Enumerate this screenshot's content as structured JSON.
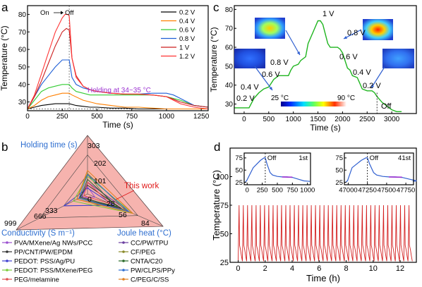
{
  "panels": {
    "a": {
      "label": "a",
      "on": "On",
      "off": "Off",
      "holding": "Holding at 34~35 °C",
      "xlabel": "Time (s)",
      "ylabel": "Temperature (°C)"
    },
    "b": {
      "label": "b",
      "this_work": "This work",
      "ax_hold": "Holding time (s)",
      "ax_cond": "Conductivity (S m⁻¹)",
      "ax_joule": "Joule heat (°C)"
    },
    "c": {
      "label": "c",
      "xlabel": "Time (s)",
      "ylabel": "Temperature (°C)",
      "cbar_min": "25 °C",
      "cbar_max": "90 °C",
      "off": "Off"
    },
    "d": {
      "label": "d",
      "xlabel": "Time (h)",
      "ylabel": "Temperature (°C)",
      "inset1_off": "Off",
      "inset1_tag": "1st",
      "inset2_off": "Off",
      "inset2_tag": "41st"
    }
  },
  "colors": {
    "c02": "#000000",
    "c04": "#ff7f00",
    "c06": "#33cc33",
    "c08": "#1f5fd6",
    "c1": "#cc1f1f",
    "c12": "#ff3333",
    "green": "#1fb51f",
    "red": "#d42020",
    "inset_blue": "#2f5fd0",
    "inset_purple": "#9b30d0",
    "holding": "#9b30d0",
    "this_work": "#e01818",
    "hold_axis": "#2f6fd0",
    "triangle_fill": "#f4a6a0"
  },
  "chart_data": [
    {
      "type": "line",
      "title": "",
      "xlabel": "Time (s)",
      "ylabel": "Temperature (°C)",
      "xlim": [
        0,
        1300
      ],
      "ylim": [
        25,
        85
      ],
      "xticks": [
        0,
        250,
        500,
        750,
        1000,
        1250
      ],
      "yticks": [
        30,
        40,
        50,
        60,
        70,
        80
      ],
      "legend": "top-right",
      "series": [
        {
          "name": "0.2 V",
          "x": [
            0,
            50,
            100,
            150,
            200,
            250,
            300,
            350,
            400,
            450,
            500,
            600,
            700,
            800,
            900,
            1000,
            1100,
            1200,
            1300
          ],
          "values": [
            26,
            27,
            28,
            28.5,
            29,
            29,
            29,
            28,
            27.5,
            27,
            27,
            26.5,
            26.5,
            26,
            26,
            26,
            26,
            26,
            26
          ]
        },
        {
          "name": "0.4 V",
          "x": [
            0,
            50,
            100,
            150,
            200,
            250,
            300,
            320,
            400,
            450,
            500,
            600,
            700,
            800,
            900,
            1000,
            1100,
            1200,
            1300
          ],
          "values": [
            26,
            28,
            31,
            33,
            34,
            35,
            35,
            34,
            31,
            30,
            29,
            28,
            27,
            27,
            26.5,
            26,
            26,
            26,
            26
          ]
        },
        {
          "name": "0.6 V",
          "x": [
            0,
            50,
            100,
            150,
            200,
            250,
            300,
            320,
            350,
            400,
            450,
            500,
            600,
            700,
            800,
            900,
            1000,
            1100,
            1200,
            1300
          ],
          "values": [
            26,
            31,
            36,
            38,
            39,
            40,
            40,
            38,
            36,
            35,
            34,
            34,
            34,
            34,
            34,
            34,
            33,
            31,
            28,
            27
          ]
        },
        {
          "name": "0.8 V",
          "x": [
            0,
            50,
            100,
            150,
            200,
            250,
            300,
            320,
            350,
            400,
            500,
            600,
            700,
            800,
            900,
            1000,
            1050,
            1100,
            1150,
            1200,
            1300
          ],
          "values": [
            26,
            33,
            40,
            45,
            50,
            54,
            54,
            44,
            40,
            38,
            36,
            35,
            34.5,
            34.5,
            35,
            35,
            34,
            32,
            30,
            28,
            27
          ]
        },
        {
          "name": "1 V",
          "x": [
            0,
            50,
            100,
            150,
            200,
            250,
            280,
            300,
            320,
            350,
            400,
            450,
            500,
            600,
            700,
            800,
            900,
            1000,
            1100,
            1200,
            1300
          ],
          "values": [
            26,
            33,
            42,
            52,
            62,
            70,
            72,
            71,
            55,
            45,
            39,
            37,
            36,
            35,
            34.5,
            34.5,
            34,
            33,
            30,
            28,
            27
          ]
        },
        {
          "name": "1.2 V",
          "x": [
            0,
            50,
            100,
            150,
            200,
            250,
            270,
            290,
            300,
            320,
            350,
            400,
            450,
            500,
            600,
            700,
            800,
            900,
            1000,
            1050,
            1100,
            1200,
            1300
          ],
          "values": [
            26,
            34,
            46,
            58,
            70,
            78,
            80,
            80,
            79,
            55,
            44,
            39,
            37,
            36,
            35,
            34.5,
            34.5,
            34,
            33,
            31,
            29,
            27,
            26
          ]
        }
      ]
    },
    {
      "type": "radar",
      "title": "",
      "axes": [
        "Holding time (s)",
        "Joule heat (°C)",
        "Conductivity (S m⁻¹)"
      ],
      "tick_labels": {
        "holding": [
          "0",
          "101",
          "202",
          "303"
        ],
        "joule": [
          "28",
          "56",
          "84"
        ],
        "conductivity": [
          "333",
          "666",
          "999"
        ]
      },
      "legend": "bottom",
      "series": [
        {
          "name": "PVA/MXene/Ag NWs/PCC",
          "values": [
            0.12,
            0.1,
            0.1
          ]
        },
        {
          "name": "CC/PW/TPU",
          "values": [
            0.2,
            0.55,
            0.08
          ]
        },
        {
          "name": "PP/CNT/PW/EPDM",
          "values": [
            0.15,
            0.45,
            0.12
          ]
        },
        {
          "name": "CF/PEG",
          "values": [
            0.35,
            0.5,
            0.15
          ]
        },
        {
          "name": "PEDOT: PSS/Ag/PU",
          "values": [
            0.1,
            0.35,
            0.33
          ]
        },
        {
          "name": "CNTA/C20",
          "values": [
            0.25,
            0.4,
            0.1
          ]
        },
        {
          "name": "PEDOT: PSS/MXene/PEG",
          "values": [
            0.3,
            0.6,
            0.2
          ]
        },
        {
          "name": "PW/CLPS/PPy",
          "values": [
            0.33,
            0.55,
            0.12
          ]
        },
        {
          "name": "PEG/melamine",
          "values": [
            0.2,
            0.3,
            0.05
          ]
        },
        {
          "name": "C/PEG/C/SS",
          "values": [
            0.4,
            0.6,
            0.15
          ]
        },
        {
          "name": "This work",
          "values": [
            1.0,
            1.0,
            1.0
          ]
        }
      ]
    },
    {
      "type": "line",
      "title": "",
      "xlabel": "Time (s)",
      "ylabel": "Temperature (°C)",
      "xlim": [
        -200,
        3500
      ],
      "ylim": [
        25,
        82
      ],
      "xticks": [
        0,
        500,
        1000,
        1500,
        2000,
        2500,
        3000
      ],
      "yticks": [
        30,
        40,
        50,
        60,
        70,
        80
      ],
      "step_labels": [
        "0.2 V",
        "0.4 V",
        "0.6 V",
        "0.8 V",
        "1 V",
        "0.8 V",
        "0.6 V",
        "0.4 V",
        "0.2 V",
        "Off"
      ],
      "series": [
        {
          "name": "",
          "x": [
            -200,
            100,
            200,
            300,
            400,
            500,
            600,
            700,
            800,
            900,
            950,
            1000,
            1100,
            1150,
            1250,
            1300,
            1400,
            1500,
            1550,
            1600,
            1700,
            1750,
            1800,
            1900,
            1950,
            2000,
            2100,
            2150,
            2200,
            2300,
            2400,
            2500,
            2550,
            2600,
            2650,
            2700,
            2800,
            2900,
            3000,
            3100,
            3200
          ],
          "values": [
            28,
            28,
            33,
            36,
            38,
            39,
            43,
            45,
            45,
            45,
            48,
            50,
            51,
            53,
            55,
            62,
            68,
            74,
            74,
            72,
            62,
            60,
            60,
            60,
            59,
            57,
            49,
            48,
            45,
            44,
            38,
            37,
            37,
            37,
            36,
            34,
            31,
            29,
            27,
            26,
            26
          ]
        }
      ]
    },
    {
      "type": "line",
      "title": "",
      "xlabel": "Time (h)",
      "ylabel": "Temperature (°C)",
      "xlim": [
        -0.6,
        13.2
      ],
      "ylim": [
        25,
        125
      ],
      "xticks": [
        0,
        2,
        4,
        6,
        8,
        10,
        12
      ],
      "yticks": [
        25,
        50,
        75,
        100
      ],
      "cycles": 41,
      "cycle_max": 75,
      "cycle_min": 26,
      "insets": [
        {
          "tag": "1st",
          "xticks": [
            0,
            250,
            500,
            750,
            1000
          ],
          "yticks": [
            25,
            50,
            75
          ],
          "off": "Off"
        },
        {
          "tag": "41st",
          "xticks": [
            47000,
            47250,
            47500,
            47750
          ],
          "tick_labels": [
            "47000",
            "47250",
            "47500",
            "47750"
          ],
          "yticks": [
            25,
            50,
            75
          ],
          "off": "Off"
        }
      ]
    }
  ]
}
